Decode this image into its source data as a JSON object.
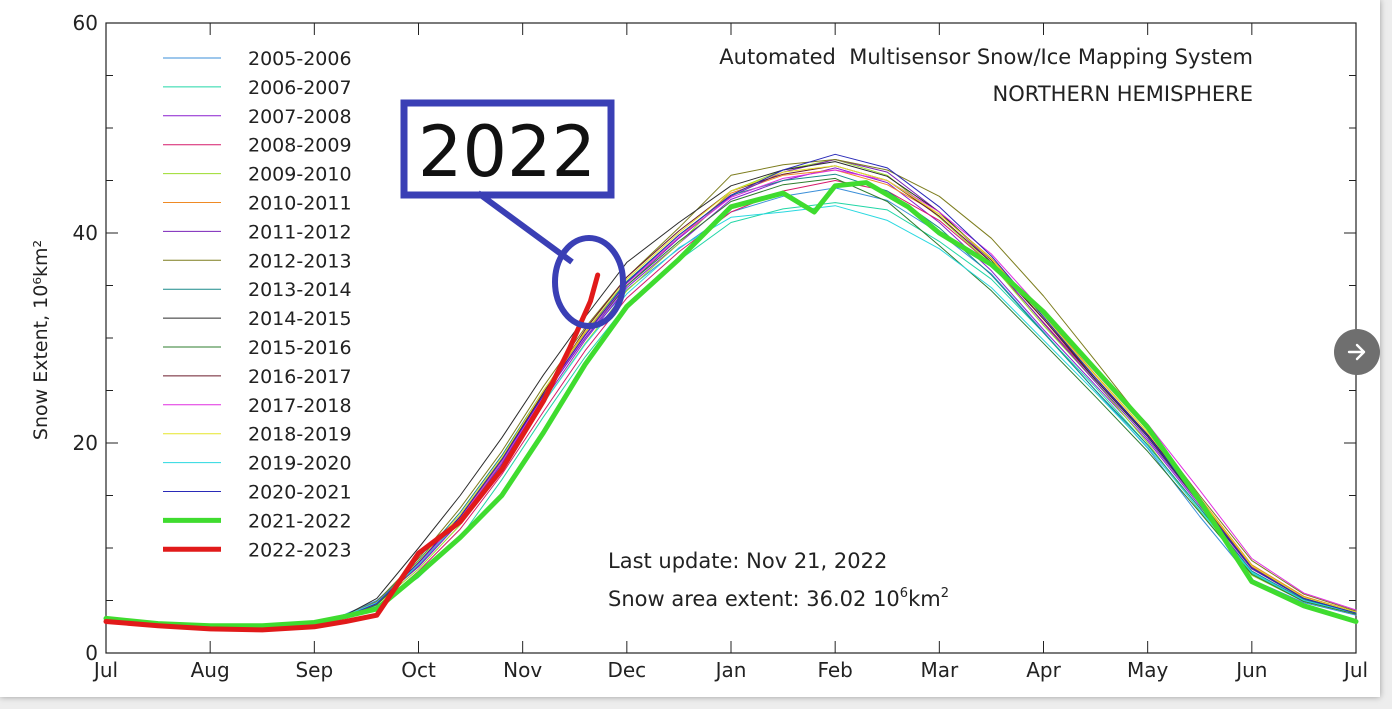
{
  "chart_data": {
    "type": "line",
    "title": "Automated  Multisensor Snow/Ice Mapping System",
    "subtitle": "NORTHERN HEMISPHERE",
    "ylabel": "Snow Extent, 10⁶km²",
    "xlabel": "",
    "ylim": [
      0,
      60
    ],
    "y_ticks": [
      "0",
      "20",
      "40",
      "60"
    ],
    "x_ticks": [
      "Jul",
      "Aug",
      "Sep",
      "Oct",
      "Nov",
      "Dec",
      "Jan",
      "Feb",
      "Mar",
      "Apr",
      "May",
      "Jun",
      "Jul"
    ],
    "grid": false,
    "legend_position": "top-left",
    "x_unit": "months since Jul 1",
    "series": [
      {
        "name": "2005-2006",
        "color": "#3b8fd9",
        "width": 1,
        "x": [
          0,
          0.5,
          1,
          1.5,
          2,
          2.3,
          2.6,
          3,
          3.4,
          3.8,
          4.2,
          4.6,
          5,
          5.5,
          6,
          6.5,
          7,
          7.5,
          8,
          8.5,
          9,
          9.5,
          10,
          10.5,
          11,
          11.5,
          12
        ],
        "y": [
          3.1,
          2.6,
          2.4,
          2.5,
          2.8,
          3.7,
          5.0,
          8.6,
          12.8,
          18.0,
          24.5,
          30.0,
          34.6,
          38.5,
          42.0,
          43.5,
          44.3,
          43.1,
          40.0,
          36.1,
          30.6,
          25.0,
          19.5,
          13.0,
          7.0,
          4.8,
          3.6
        ]
      },
      {
        "name": "2006-2007",
        "color": "#21d6a6",
        "width": 1,
        "x": [
          0,
          0.5,
          1,
          1.5,
          2,
          2.3,
          2.6,
          3,
          3.4,
          3.8,
          4.2,
          4.6,
          5,
          5.5,
          6,
          6.5,
          7,
          7.5,
          8,
          8.5,
          9,
          9.5,
          10,
          10.5,
          11,
          11.5,
          12
        ],
        "y": [
          3.3,
          2.8,
          2.6,
          2.6,
          2.9,
          3.4,
          4.5,
          7.2,
          11.0,
          16.5,
          22.5,
          28.2,
          33.2,
          37.4,
          41.0,
          42.3,
          42.9,
          42.2,
          39.2,
          35.6,
          30.5,
          25.3,
          19.8,
          13.8,
          7.6,
          5.0,
          3.8
        ]
      },
      {
        "name": "2007-2008",
        "color": "#8a1ecf",
        "width": 1,
        "x": [
          0,
          0.5,
          1,
          1.5,
          2,
          2.3,
          2.6,
          3,
          3.4,
          3.8,
          4.2,
          4.6,
          5,
          5.5,
          6,
          6.5,
          7,
          7.5,
          8,
          8.5,
          9,
          9.5,
          10,
          10.5,
          11,
          11.5,
          12
        ],
        "y": [
          3.2,
          2.7,
          2.5,
          2.5,
          2.8,
          3.6,
          4.8,
          8.2,
          12.5,
          17.8,
          24.0,
          29.8,
          34.8,
          39.0,
          43.2,
          45.0,
          46.2,
          44.8,
          41.0,
          36.4,
          30.8,
          25.5,
          20.2,
          14.0,
          7.8,
          5.0,
          3.7
        ]
      },
      {
        "name": "2008-2009",
        "color": "#d61a6a",
        "width": 1,
        "x": [
          0,
          0.5,
          1,
          1.5,
          2,
          2.3,
          2.6,
          3,
          3.4,
          3.8,
          4.2,
          4.6,
          5,
          5.5,
          6,
          6.5,
          7,
          7.5,
          8,
          8.5,
          9,
          9.5,
          10,
          10.5,
          11,
          11.5,
          12
        ],
        "y": [
          3.0,
          2.6,
          2.4,
          2.4,
          2.7,
          3.3,
          4.3,
          7.8,
          11.8,
          17.0,
          23.0,
          28.8,
          33.8,
          38.2,
          42.0,
          44.0,
          45.0,
          44.0,
          41.2,
          37.0,
          31.5,
          26.0,
          20.8,
          14.5,
          8.2,
          5.3,
          3.9
        ]
      },
      {
        "name": "2009-2010",
        "color": "#9bdc2b",
        "width": 1,
        "x": [
          0,
          0.5,
          1,
          1.5,
          2,
          2.3,
          2.6,
          3,
          3.4,
          3.8,
          4.2,
          4.6,
          5,
          5.5,
          6,
          6.5,
          7,
          7.5,
          8,
          8.5,
          9,
          9.5,
          10,
          10.5,
          11,
          11.5,
          12
        ],
        "y": [
          3.4,
          2.9,
          2.6,
          2.6,
          2.9,
          3.5,
          4.6,
          8.0,
          12.2,
          17.5,
          23.8,
          29.5,
          34.5,
          39.0,
          44.0,
          46.0,
          47.0,
          45.5,
          41.5,
          37.0,
          31.2,
          25.8,
          20.0,
          13.5,
          7.4,
          4.9,
          3.7
        ]
      },
      {
        "name": "2010-2011",
        "color": "#ef8a24",
        "width": 1,
        "x": [
          0,
          0.5,
          1,
          1.5,
          2,
          2.3,
          2.6,
          3,
          3.4,
          3.8,
          4.2,
          4.6,
          5,
          5.5,
          6,
          6.5,
          7,
          7.5,
          8,
          8.5,
          9,
          9.5,
          10,
          10.5,
          11,
          11.5,
          12
        ],
        "y": [
          3.1,
          2.7,
          2.5,
          2.5,
          2.8,
          3.4,
          4.6,
          8.4,
          12.9,
          18.4,
          24.8,
          30.5,
          35.2,
          39.6,
          43.8,
          45.5,
          46.0,
          44.6,
          41.8,
          37.6,
          32.2,
          26.5,
          21.0,
          14.8,
          8.4,
          5.4,
          3.9
        ]
      },
      {
        "name": "2011-2012",
        "color": "#7a22b8",
        "width": 1,
        "x": [
          0,
          0.5,
          1,
          1.5,
          2,
          2.3,
          2.6,
          3,
          3.4,
          3.8,
          4.2,
          4.6,
          5,
          5.5,
          6,
          6.5,
          7,
          7.5,
          8,
          8.5,
          9,
          9.5,
          10,
          10.5,
          11,
          11.5,
          12
        ],
        "y": [
          3.2,
          2.7,
          2.5,
          2.5,
          2.8,
          3.5,
          4.7,
          8.3,
          12.6,
          18.0,
          24.4,
          30.0,
          35.0,
          39.5,
          43.5,
          45.8,
          47.0,
          45.8,
          42.0,
          37.2,
          31.4,
          25.8,
          20.4,
          14.2,
          8.0,
          5.2,
          3.8
        ]
      },
      {
        "name": "2012-2013",
        "color": "#7d7d1e",
        "width": 1,
        "x": [
          0,
          0.5,
          1,
          1.5,
          2,
          2.3,
          2.6,
          3,
          3.4,
          3.8,
          4.2,
          4.6,
          5,
          5.5,
          6,
          6.5,
          7,
          7.5,
          8,
          8.5,
          9,
          9.5,
          10,
          10.5,
          11,
          11.5,
          12
        ],
        "y": [
          3.3,
          2.8,
          2.6,
          2.6,
          2.9,
          3.6,
          4.9,
          9.0,
          13.8,
          19.2,
          25.4,
          31.0,
          35.8,
          40.5,
          45.5,
          46.5,
          47.0,
          46.0,
          43.5,
          39.5,
          34.0,
          27.8,
          21.5,
          15.0,
          8.8,
          5.6,
          4.0
        ]
      },
      {
        "name": "2013-2014",
        "color": "#1a8a8a",
        "width": 1,
        "x": [
          0,
          0.5,
          1,
          1.5,
          2,
          2.3,
          2.6,
          3,
          3.4,
          3.8,
          4.2,
          4.6,
          5,
          5.5,
          6,
          6.5,
          7,
          7.5,
          8,
          8.5,
          9,
          9.5,
          10,
          10.5,
          11,
          11.5,
          12
        ],
        "y": [
          3.2,
          2.7,
          2.5,
          2.5,
          2.8,
          3.5,
          4.8,
          8.8,
          13.4,
          18.8,
          25.0,
          30.6,
          35.4,
          39.8,
          43.6,
          45.0,
          45.6,
          44.0,
          40.5,
          36.0,
          30.5,
          25.0,
          19.8,
          13.8,
          7.8,
          5.1,
          3.8
        ]
      },
      {
        "name": "2014-2015",
        "color": "#2b2b2b",
        "width": 1,
        "x": [
          0,
          0.5,
          1,
          1.5,
          2,
          2.3,
          2.6,
          3,
          3.4,
          3.8,
          4.2,
          4.6,
          5,
          5.5,
          6,
          6.5,
          7,
          7.5,
          8,
          8.5,
          9,
          9.5,
          10,
          10.5,
          11,
          11.5,
          12
        ],
        "y": [
          3.2,
          2.7,
          2.5,
          2.5,
          2.8,
          3.6,
          5.2,
          10.0,
          15.0,
          20.5,
          26.5,
          32.0,
          37.2,
          41.0,
          44.5,
          46.0,
          46.8,
          45.4,
          42.0,
          37.4,
          31.8,
          26.0,
          20.6,
          14.3,
          8.1,
          5.2,
          3.8
        ]
      },
      {
        "name": "2015-2016",
        "color": "#2e7d2e",
        "width": 1,
        "x": [
          0,
          0.5,
          1,
          1.5,
          2,
          2.3,
          2.6,
          3,
          3.4,
          3.8,
          4.2,
          4.6,
          5,
          5.5,
          6,
          6.5,
          7,
          7.5,
          8,
          8.5,
          9,
          9.5,
          10,
          10.5,
          11,
          11.5,
          12
        ],
        "y": [
          3.1,
          2.6,
          2.4,
          2.4,
          2.7,
          3.4,
          4.6,
          8.4,
          12.8,
          18.2,
          24.6,
          30.3,
          35.0,
          39.2,
          43.0,
          44.6,
          45.2,
          43.0,
          38.8,
          34.5,
          29.5,
          24.4,
          19.2,
          13.4,
          7.5,
          4.9,
          3.7
        ]
      },
      {
        "name": "2016-2017",
        "color": "#6b1a2a",
        "width": 1,
        "x": [
          0,
          0.5,
          1,
          1.5,
          2,
          2.3,
          2.6,
          3,
          3.4,
          3.8,
          4.2,
          4.6,
          5,
          5.5,
          6,
          6.5,
          7,
          7.5,
          8,
          8.5,
          9,
          9.5,
          10,
          10.5,
          11,
          11.5,
          12
        ],
        "y": [
          3.2,
          2.7,
          2.5,
          2.5,
          2.8,
          3.5,
          4.7,
          8.6,
          13.0,
          18.5,
          24.8,
          30.8,
          35.8,
          40.2,
          44.0,
          45.6,
          46.4,
          45.0,
          41.6,
          37.2,
          31.8,
          26.2,
          20.8,
          14.6,
          8.3,
          5.3,
          3.9
        ]
      },
      {
        "name": "2017-2018",
        "color": "#e02ee0",
        "width": 1,
        "x": [
          0,
          0.5,
          1,
          1.5,
          2,
          2.3,
          2.6,
          3,
          3.4,
          3.8,
          4.2,
          4.6,
          5,
          5.5,
          6,
          6.5,
          7,
          7.5,
          8,
          8.5,
          9,
          9.5,
          10,
          10.5,
          11,
          11.5,
          12
        ],
        "y": [
          3.3,
          2.8,
          2.6,
          2.6,
          2.9,
          3.6,
          4.8,
          8.5,
          12.8,
          18.2,
          24.5,
          30.2,
          35.2,
          39.6,
          43.4,
          45.2,
          46.0,
          45.0,
          42.0,
          38.0,
          32.5,
          27.0,
          21.8,
          15.5,
          9.0,
          5.7,
          4.1
        ]
      },
      {
        "name": "2018-2019",
        "color": "#e5e52a",
        "width": 1,
        "x": [
          0,
          0.5,
          1,
          1.5,
          2,
          2.3,
          2.6,
          3,
          3.4,
          3.8,
          4.2,
          4.6,
          5,
          5.5,
          6,
          6.5,
          7,
          7.5,
          8,
          8.5,
          9,
          9.5,
          10,
          10.5,
          11,
          11.5,
          12
        ],
        "y": [
          3.2,
          2.7,
          2.5,
          2.5,
          2.8,
          3.5,
          4.7,
          8.7,
          13.2,
          18.6,
          25.0,
          30.6,
          35.6,
          40.0,
          44.0,
          45.8,
          46.4,
          45.0,
          41.8,
          37.5,
          32.0,
          26.4,
          21.0,
          14.7,
          8.3,
          5.3,
          3.9
        ]
      },
      {
        "name": "2019-2020",
        "color": "#29d8e0",
        "width": 1,
        "x": [
          0,
          0.5,
          1,
          1.5,
          2,
          2.3,
          2.6,
          3,
          3.4,
          3.8,
          4.2,
          4.6,
          5,
          5.5,
          6,
          6.5,
          7,
          7.5,
          8,
          8.5,
          9,
          9.5,
          10,
          10.5,
          11,
          11.5,
          12
        ],
        "y": [
          3.4,
          2.9,
          2.7,
          2.7,
          3.0,
          3.6,
          4.8,
          8.4,
          12.6,
          17.8,
          23.8,
          29.4,
          34.2,
          38.6,
          41.5,
          42.0,
          42.6,
          41.2,
          38.5,
          34.8,
          29.8,
          24.8,
          19.6,
          13.6,
          7.7,
          5.0,
          3.8
        ]
      },
      {
        "name": "2020-2021",
        "color": "#2a2ab8",
        "width": 1,
        "x": [
          0,
          0.5,
          1,
          1.5,
          2,
          2.3,
          2.6,
          3,
          3.4,
          3.8,
          4.2,
          4.6,
          5,
          5.5,
          6,
          6.5,
          7,
          7.5,
          8,
          8.5,
          9,
          9.5,
          10,
          10.5,
          11,
          11.5,
          12
        ],
        "y": [
          3.2,
          2.7,
          2.5,
          2.5,
          2.8,
          3.5,
          4.7,
          8.6,
          13.0,
          18.4,
          24.6,
          30.3,
          35.3,
          39.8,
          43.6,
          46.0,
          47.5,
          46.2,
          42.5,
          37.8,
          32.0,
          26.2,
          20.7,
          14.4,
          8.1,
          5.2,
          3.8
        ]
      },
      {
        "name": "2021-2022",
        "color": "#3fdc2f",
        "width": 5,
        "x": [
          0,
          0.5,
          1,
          1.5,
          2,
          2.3,
          2.6,
          3,
          3.4,
          3.8,
          4.2,
          4.6,
          5,
          5.5,
          6,
          6.5,
          6.8,
          7,
          7.3,
          7.7,
          8,
          8.5,
          9,
          9.5,
          10,
          10.5,
          11,
          11.5,
          12
        ],
        "y": [
          3.3,
          2.8,
          2.6,
          2.6,
          2.9,
          3.5,
          4.2,
          7.5,
          11.0,
          15.0,
          21.0,
          27.5,
          33.0,
          37.5,
          42.5,
          43.8,
          42.0,
          44.5,
          44.8,
          42.5,
          40.0,
          37.0,
          32.5,
          27.0,
          21.5,
          14.5,
          6.8,
          4.5,
          3.0
        ]
      },
      {
        "name": "2022-2023",
        "color": "#e11a1a",
        "width": 5,
        "x": [
          0,
          0.5,
          1,
          1.5,
          2,
          2.3,
          2.6,
          3,
          3.4,
          3.8,
          4.2,
          4.45,
          4.65,
          4.72
        ],
        "y": [
          3.0,
          2.6,
          2.3,
          2.2,
          2.5,
          3.0,
          3.6,
          9.5,
          12.5,
          17.5,
          24.0,
          29.0,
          33.5,
          36.0
        ]
      }
    ]
  },
  "annotations": {
    "last_update": "Last update: Nov 21, 2022",
    "extent_prefix": "Snow area extent: 36.02 10",
    "extent_sup": "6",
    "extent_suffix": "km",
    "extent_unit_sup": "2",
    "callout_label": "2022",
    "callout_color": "#3a3fb5"
  },
  "nav": {
    "next_icon": "arrow-right-icon"
  }
}
